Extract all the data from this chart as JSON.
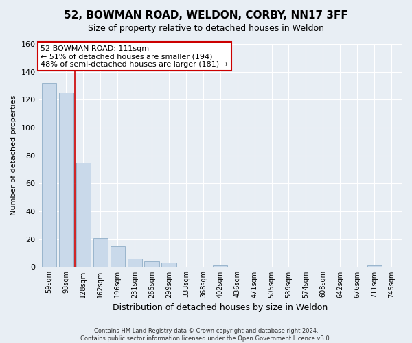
{
  "title1": "52, BOWMAN ROAD, WELDON, CORBY, NN17 3FF",
  "title2": "Size of property relative to detached houses in Weldon",
  "xlabel": "Distribution of detached houses by size in Weldon",
  "ylabel": "Number of detached properties",
  "bar_labels": [
    "59sqm",
    "93sqm",
    "128sqm",
    "162sqm",
    "196sqm",
    "231sqm",
    "265sqm",
    "299sqm",
    "333sqm",
    "368sqm",
    "402sqm",
    "436sqm",
    "471sqm",
    "505sqm",
    "539sqm",
    "574sqm",
    "608sqm",
    "642sqm",
    "676sqm",
    "711sqm",
    "745sqm"
  ],
  "bar_values": [
    132,
    125,
    75,
    21,
    15,
    6,
    4,
    3,
    0,
    0,
    1,
    0,
    0,
    0,
    0,
    0,
    0,
    0,
    0,
    1,
    0
  ],
  "bar_color": "#c9d9ea",
  "bar_edge_color": "#9ab5cc",
  "property_line_x": 1.5,
  "ylim": [
    0,
    160
  ],
  "yticks": [
    0,
    20,
    40,
    60,
    80,
    100,
    120,
    140,
    160
  ],
  "ann_line1": "52 BOWMAN ROAD: 111sqm",
  "ann_line2": "← 51% of detached houses are smaller (194)",
  "ann_line3": "48% of semi-detached houses are larger (181) →",
  "annotation_box_color": "#ffffff",
  "annotation_box_edge_color": "#cc0000",
  "footer_line1": "Contains HM Land Registry data © Crown copyright and database right 2024.",
  "footer_line2": "Contains public sector information licensed under the Open Government Licence v3.0.",
  "background_color": "#e8eef4",
  "grid_color": "#ffffff",
  "property_line_color": "#cc0000",
  "title1_fontsize": 11,
  "title2_fontsize": 9,
  "ylabel_fontsize": 8,
  "xlabel_fontsize": 9
}
